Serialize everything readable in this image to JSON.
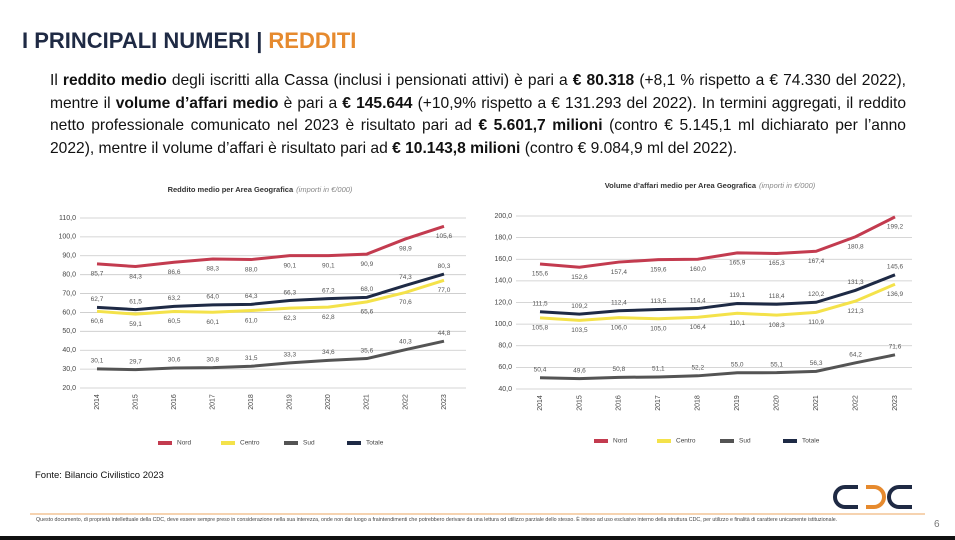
{
  "header": {
    "title_main": "I PRINCIPALI NUMERI |",
    "title_accent": "REDDITI"
  },
  "body": [
    {
      "text": "Il ",
      "bold": false
    },
    {
      "text": "reddito medio",
      "bold": true
    },
    {
      "text": " degli iscritti alla Cassa (inclusi i pensionati attivi) è pari a ",
      "bold": false
    },
    {
      "text": "€ 80.318",
      "bold": true
    },
    {
      "text": " (+8,1 % rispetto a € 74.330 del 2022), mentre il ",
      "bold": false
    },
    {
      "text": "volume d’affari medio",
      "bold": true
    },
    {
      "text": " è pari a ",
      "bold": false
    },
    {
      "text": "€ 145.644",
      "bold": true
    },
    {
      "text": " (+10,9% rispetto a € 131.293 del 2022). In termini aggregati, il reddito netto professionale comunicato nel 2023 è risultato pari ad ",
      "bold": false
    },
    {
      "text": "€ 5.601,7 milioni",
      "bold": true
    },
    {
      "text": " (contro € 5.145,1 ml dichiarato per l’anno 2022), mentre il volume d’affari è risultato pari ad ",
      "bold": false
    },
    {
      "text": "€ 10.143,8 milioni",
      "bold": true
    },
    {
      "text": " (contro € 9.084,9 ml del 2022).",
      "bold": false
    }
  ],
  "chart_data": [
    {
      "type": "line",
      "title": "Reddito medio per Area Geografica",
      "subtitle": "(importi in €/000)",
      "categories": [
        "2014",
        "2015",
        "2016",
        "2017",
        "2018",
        "2019",
        "2020",
        "2021",
        "2022",
        "2023"
      ],
      "series": [
        {
          "name": "Nord",
          "color": "#c33b4f",
          "values": [
            85.7,
            84.3,
            86.6,
            88.3,
            88.0,
            90.1,
            90.1,
            90.9,
            98.9,
            105.6
          ],
          "value_labels": [
            "85,7",
            "84,3",
            "86,6",
            "88,3",
            "88,0",
            "90,1",
            "90,1",
            "90,9",
            "98,9",
            "105,6"
          ]
        },
        {
          "name": "Centro",
          "color": "#f4e24a",
          "values": [
            60.6,
            59.1,
            60.5,
            60.1,
            61.0,
            62.3,
            62.8,
            65.6,
            70.6,
            77.0
          ],
          "value_labels": [
            "60,6",
            "59,1",
            "60,5",
            "60,1",
            "61,0",
            "62,3",
            "62,8",
            "65,6",
            "70,6",
            "77,0"
          ]
        },
        {
          "name": "Sud",
          "color": "#545454",
          "values": [
            30.1,
            29.7,
            30.6,
            30.8,
            31.5,
            33.3,
            34.6,
            35.6,
            40.3,
            44.8
          ],
          "value_labels": [
            "30,1",
            "29,7",
            "30,6",
            "30,8",
            "31,5",
            "33,3",
            "34,6",
            "35,6",
            "40,3",
            "44,8"
          ]
        },
        {
          "name": "Totale",
          "color": "#1e2a45",
          "values": [
            62.7,
            61.5,
            63.2,
            64.0,
            64.3,
            66.3,
            67.3,
            68.0,
            74.3,
            80.3
          ],
          "value_labels": [
            "62,7",
            "61,5",
            "63,2",
            "64,0",
            "64,3",
            "66,3",
            "67,3",
            "68,0",
            "74,3",
            "80,3"
          ]
        }
      ],
      "ylim": [
        20,
        110
      ],
      "yticks": [
        {
          "value": 20,
          "label": "20,0"
        },
        {
          "value": 30,
          "label": "30,0"
        },
        {
          "value": 40,
          "label": "40,0"
        },
        {
          "value": 50,
          "label": "50,0"
        },
        {
          "value": 60,
          "label": "60,0"
        },
        {
          "value": 70,
          "label": "70,0"
        },
        {
          "value": 80,
          "label": "80,0"
        },
        {
          "value": 90,
          "label": "90,0"
        },
        {
          "value": 100,
          "label": "100,0"
        },
        {
          "value": 110,
          "label": "110,0"
        }
      ],
      "grid": true,
      "legend": "bottom"
    },
    {
      "type": "line",
      "title": "Volume d’affari medio per Area Geografica",
      "subtitle": "(importi in €/000)",
      "categories": [
        "2014",
        "2015",
        "2016",
        "2017",
        "2018",
        "2019",
        "2020",
        "2021",
        "2022",
        "2023"
      ],
      "series": [
        {
          "name": "Nord",
          "color": "#c33b4f",
          "values": [
            155.6,
            152.6,
            157.4,
            159.6,
            160.0,
            165.9,
            165.3,
            167.4,
            180.8,
            199.2
          ],
          "value_labels": [
            "155,6",
            "152,6",
            "157,4",
            "159,6",
            "160,0",
            "165,9",
            "165,3",
            "167,4",
            "180,8",
            "199,2"
          ]
        },
        {
          "name": "Centro",
          "color": "#f4e24a",
          "values": [
            105.8,
            103.5,
            106.0,
            105.0,
            106.4,
            110.1,
            108.3,
            110.9,
            121.3,
            136.9
          ],
          "value_labels": [
            "105,8",
            "103,5",
            "106,0",
            "105,0",
            "106,4",
            "110,1",
            "108,3",
            "110,9",
            "121,3",
            "136,9"
          ]
        },
        {
          "name": "Sud",
          "color": "#545454",
          "values": [
            50.4,
            49.6,
            50.8,
            51.1,
            52.2,
            55.0,
            55.1,
            56.3,
            64.2,
            71.6
          ],
          "value_labels": [
            "50,4",
            "49,6",
            "50,8",
            "51,1",
            "52,2",
            "55,0",
            "55,1",
            "56,3",
            "64,2",
            "71,6"
          ]
        },
        {
          "name": "Totale",
          "color": "#1e2a45",
          "values": [
            111.5,
            109.2,
            112.4,
            113.5,
            114.4,
            119.1,
            118.4,
            120.2,
            131.3,
            145.6
          ],
          "value_labels": [
            "111,5",
            "109,2",
            "112,4",
            "113,5",
            "114,4",
            "119,1",
            "118,4",
            "120,2",
            "131,3",
            "145,6"
          ]
        }
      ],
      "ylim": [
        40,
        200
      ],
      "yticks": [
        {
          "value": 40,
          "label": "40,0"
        },
        {
          "value": 60,
          "label": "60,0"
        },
        {
          "value": 80,
          "label": "80,0"
        },
        {
          "value": 100,
          "label": "100,0"
        },
        {
          "value": 120,
          "label": "120,0"
        },
        {
          "value": 140,
          "label": "140,0"
        },
        {
          "value": 160,
          "label": "160,0"
        },
        {
          "value": 180,
          "label": "180,0"
        },
        {
          "value": 200,
          "label": "200,0"
        }
      ],
      "grid": true,
      "legend": "bottom"
    }
  ],
  "source": "Fonte: Bilancio Civilistico 2023",
  "footer": "Questo documento, di proprietà intellettuale della CDC, deve essere sempre preso in considerazione nella sua interezza, onde non dar luogo a fraintendimenti che potrebbero derivare da una lettura od utilizzo parziale dello stesso. È inteso ad uso esclusivo interno della struttura CDC, per utilizzo e finalità di carattere unicamente istituzionale.",
  "page": "6"
}
